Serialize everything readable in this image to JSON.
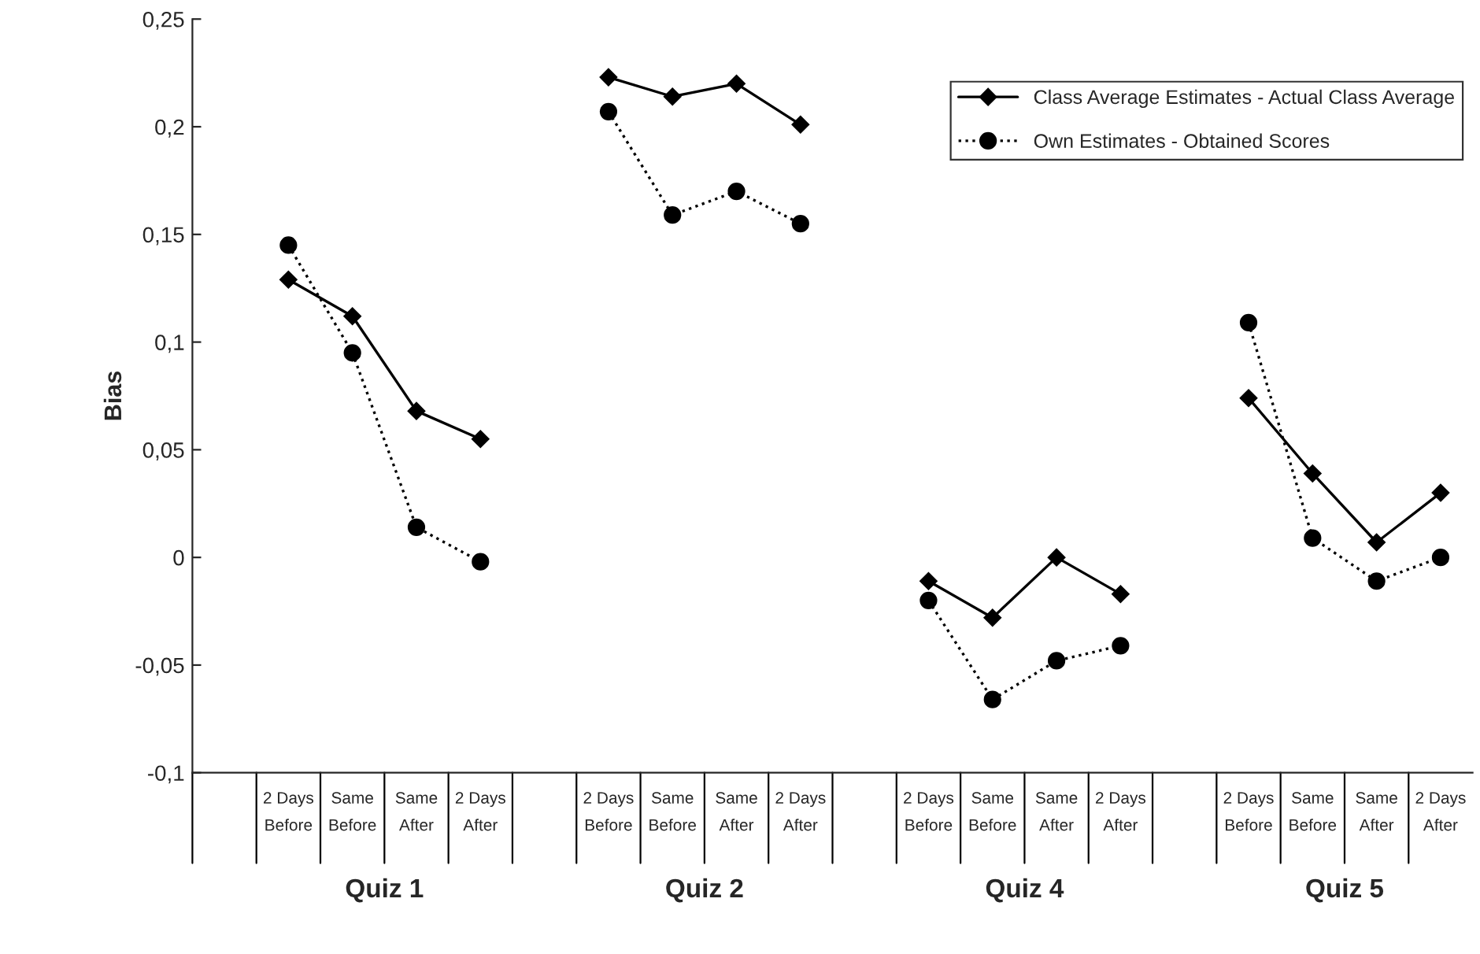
{
  "chart_data": {
    "type": "line",
    "ylabel": "Bias",
    "categories": [
      null,
      "2 Days\nBefore",
      "Same\nBefore",
      "Same\nAfter",
      "2 Days\nAfter",
      null,
      "2 Days\nBefore",
      "Same\nBefore",
      "Same\nAfter",
      "2 Days\nAfter",
      null,
      "2 Days\nBefore",
      "Same\nBefore",
      "Same\nAfter",
      "2 Days\nAfter",
      null,
      "2 Days\nBefore",
      "Same\nBefore",
      "Same\nAfter",
      "2 Days\nAfter"
    ],
    "series": [
      {
        "name": "Class Average Estimates - Actual Class Average",
        "color": "#000000",
        "marker": "diamond",
        "line_style": "solid",
        "values": [
          null,
          0.129,
          0.112,
          0.068,
          0.055,
          null,
          0.223,
          0.214,
          0.22,
          0.201,
          null,
          -0.011,
          -0.028,
          0.0,
          -0.017,
          null,
          0.074,
          0.039,
          0.007,
          0.03
        ]
      },
      {
        "name": "Own Estimates - Obtained Scores",
        "color": "#000000",
        "marker": "circle",
        "line_style": "dotted",
        "values": [
          null,
          0.145,
          0.095,
          0.014,
          -0.002,
          null,
          0.207,
          0.159,
          0.17,
          0.155,
          null,
          -0.02,
          -0.066,
          -0.048,
          -0.041,
          null,
          0.109,
          0.009,
          -0.011,
          0.0
        ]
      }
    ],
    "ylim": [
      -0.1,
      0.25
    ],
    "yticks": [
      {
        "value": -0.1,
        "label": "-0,1"
      },
      {
        "value": -0.05,
        "label": "-0,05"
      },
      {
        "value": 0,
        "label": "0"
      },
      {
        "value": 0.05,
        "label": "0,05"
      },
      {
        "value": 0.1,
        "label": "0,1"
      },
      {
        "value": 0.15,
        "label": "0,15"
      },
      {
        "value": 0.2,
        "label": "0,2"
      },
      {
        "value": 0.25,
        "label": "0,25"
      }
    ],
    "annotations": [
      "Quiz 1",
      "Quiz 2",
      "Quiz 4",
      "Quiz 5"
    ],
    "legend": "top right",
    "grid": false
  }
}
